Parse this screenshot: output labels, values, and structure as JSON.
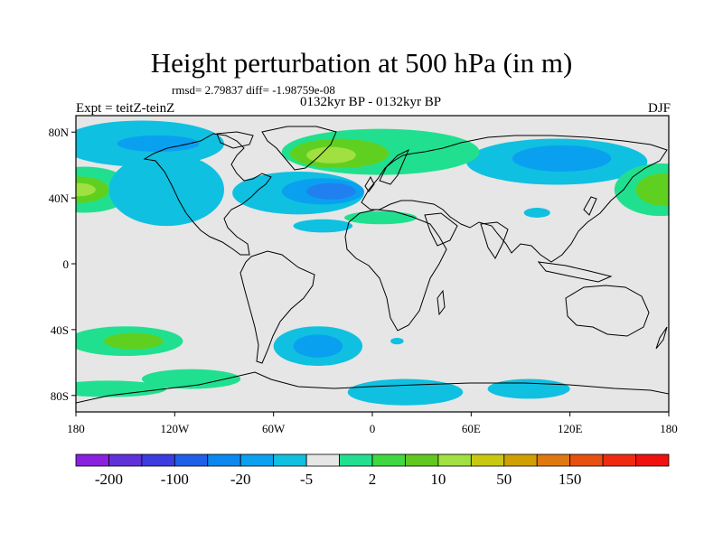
{
  "header": {
    "title": "Height perturbation at 500 hPa (in m)",
    "stats": "rmsd= 2.79837 diff= -1.98759e-08",
    "expt": "Expt = teitZ-teinZ",
    "period": "0132kyr BP - 0132kyr BP",
    "season": "DJF"
  },
  "map": {
    "projection": "cylindrical-equidistant",
    "lon_range": [
      -180,
      180
    ],
    "lat_range": [
      -90,
      90
    ],
    "background_color": "#e6e6e6",
    "coastline_color": "#000000",
    "y_ticks": [
      {
        "lat": 80,
        "label": "80N"
      },
      {
        "lat": 40,
        "label": "40N"
      },
      {
        "lat": 0,
        "label": "0"
      },
      {
        "lat": -40,
        "label": "40S"
      },
      {
        "lat": -80,
        "label": "80S"
      }
    ],
    "x_ticks": [
      {
        "lon": -180,
        "label": "180"
      },
      {
        "lon": -120,
        "label": "120W"
      },
      {
        "lon": -60,
        "label": "60W"
      },
      {
        "lon": 0,
        "label": "0"
      },
      {
        "lon": 60,
        "label": "60E"
      },
      {
        "lon": 120,
        "label": "120E"
      },
      {
        "lon": 180,
        "label": "180"
      }
    ],
    "anomaly_regions": [
      {
        "name": "n-atlantic-low",
        "levels": [
          {
            "lon": -45,
            "lat": 43,
            "rlon": 40,
            "rlat": 13,
            "color": "#10c0e0"
          },
          {
            "lon": -30,
            "lat": 44,
            "rlon": 25,
            "rlat": 8,
            "color": "#0aa0f0"
          },
          {
            "lon": -25,
            "lat": 44,
            "rlon": 15,
            "rlat": 5,
            "color": "#2080f0"
          }
        ]
      },
      {
        "name": "siberia-low",
        "levels": [
          {
            "lon": 112,
            "lat": 62,
            "rlon": 55,
            "rlat": 14,
            "color": "#10c0e0"
          },
          {
            "lon": 115,
            "lat": 64,
            "rlon": 30,
            "rlat": 8,
            "color": "#0aa0f0"
          }
        ]
      },
      {
        "name": "n-pacific-high-west",
        "levels": [
          {
            "lon": -175,
            "lat": 45,
            "rlon": 30,
            "rlat": 14,
            "color": "#20e090"
          },
          {
            "lon": -178,
            "lat": 45,
            "rlon": 18,
            "rlat": 8,
            "color": "#60d020"
          },
          {
            "lon": -178,
            "lat": 45,
            "rlon": 10,
            "rlat": 4,
            "color": "#a0e040"
          }
        ]
      },
      {
        "name": "n-pacific-high-east",
        "levels": [
          {
            "lon": 175,
            "lat": 45,
            "rlon": 28,
            "rlat": 16,
            "color": "#20e090"
          },
          {
            "lon": 178,
            "lat": 45,
            "rlon": 18,
            "rlat": 10,
            "color": "#60d020"
          }
        ]
      },
      {
        "name": "pacific-low",
        "levels": [
          {
            "lon": -140,
            "lat": 73,
            "rlon": 50,
            "rlat": 14,
            "color": "#10c0e0"
          },
          {
            "lon": -125,
            "lat": 45,
            "rlon": 35,
            "rlat": 22,
            "color": "#10c0e0"
          },
          {
            "lon": -130,
            "lat": 73,
            "rlon": 25,
            "rlat": 5,
            "color": "#0aa0f0"
          }
        ]
      },
      {
        "name": "greenland-high",
        "levels": [
          {
            "lon": 5,
            "lat": 68,
            "rlon": 60,
            "rlat": 14,
            "color": "#20e090"
          },
          {
            "lon": -20,
            "lat": 67,
            "rlon": 30,
            "rlat": 9,
            "color": "#60d020"
          },
          {
            "lon": -25,
            "lat": 66,
            "rlon": 15,
            "rlat": 5,
            "color": "#a0e040"
          }
        ]
      },
      {
        "name": "mediterranean-high",
        "levels": [
          {
            "lon": 5,
            "lat": 28,
            "rlon": 22,
            "rlat": 4,
            "color": "#20e090"
          }
        ]
      },
      {
        "name": "africa-low",
        "levels": [
          {
            "lon": -30,
            "lat": 23,
            "rlon": 18,
            "rlat": 4,
            "color": "#10c0e0"
          }
        ]
      },
      {
        "name": "japan-low",
        "levels": [
          {
            "lon": 100,
            "lat": 31,
            "rlon": 8,
            "rlat": 3,
            "color": "#10c0e0"
          }
        ]
      },
      {
        "name": "s-pacific-high",
        "levels": [
          {
            "lon": -150,
            "lat": -47,
            "rlon": 35,
            "rlat": 9,
            "color": "#20e090"
          },
          {
            "lon": -145,
            "lat": -47,
            "rlon": 18,
            "rlat": 5,
            "color": "#60d020"
          }
        ]
      },
      {
        "name": "s-atlantic-low",
        "levels": [
          {
            "lon": -33,
            "lat": -50,
            "rlon": 27,
            "rlat": 12,
            "color": "#10c0e0"
          },
          {
            "lon": -33,
            "lat": -50,
            "rlon": 15,
            "rlat": 7,
            "color": "#0aa0f0"
          }
        ]
      },
      {
        "name": "antarctic-high",
        "levels": [
          {
            "lon": -110,
            "lat": -70,
            "rlon": 30,
            "rlat": 6,
            "color": "#20e090"
          },
          {
            "lon": -160,
            "lat": -76,
            "rlon": 35,
            "rlat": 5,
            "color": "#20e090"
          }
        ]
      },
      {
        "name": "antarctic-low",
        "levels": [
          {
            "lon": 20,
            "lat": -78,
            "rlon": 35,
            "rlat": 8,
            "color": "#10c0e0"
          },
          {
            "lon": 95,
            "lat": -76,
            "rlon": 25,
            "rlat": 6,
            "color": "#10c0e0"
          },
          {
            "lon": 15,
            "lat": -47,
            "rlon": 4,
            "rlat": 2,
            "color": "#10c0e0"
          }
        ]
      }
    ]
  },
  "colorbar": {
    "colors": [
      "#8a20e0",
      "#6030d8",
      "#3c3ce0",
      "#2060e8",
      "#0a88f0",
      "#0aa0f0",
      "#10c0e0",
      "#e6e6e6",
      "#20e090",
      "#40d840",
      "#60c820",
      "#a0e040",
      "#c8c810",
      "#d0a000",
      "#e07810",
      "#e85010",
      "#f02a10",
      "#f01010"
    ],
    "labels": [
      {
        "boundary": 1,
        "text": "-200"
      },
      {
        "boundary": 3,
        "text": "-100"
      },
      {
        "boundary": 5,
        "text": "-20"
      },
      {
        "boundary": 7,
        "text": "-5"
      },
      {
        "boundary": 9,
        "text": "2"
      },
      {
        "boundary": 11,
        "text": "10"
      },
      {
        "boundary": 13,
        "text": "50"
      },
      {
        "boundary": 15,
        "text": "150"
      }
    ]
  }
}
